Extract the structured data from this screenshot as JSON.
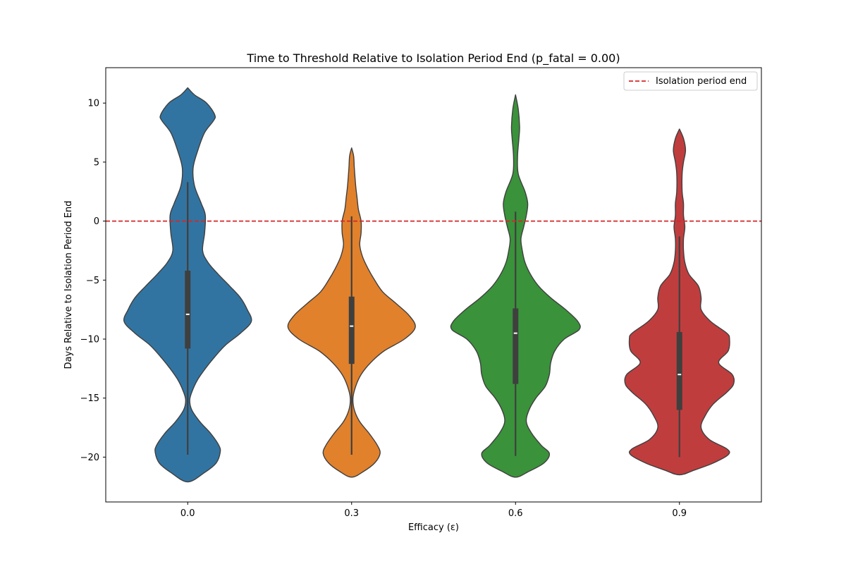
{
  "chart_data": {
    "type": "violin",
    "title": "Time to Threshold Relative to Isolation Period End (p_fatal = 0.00)",
    "xlabel": "Efficacy (ε)",
    "ylabel": "Days Relative to Isolation Period End",
    "ylim": [
      -23.8,
      13.0
    ],
    "yticks": [
      10,
      5,
      0,
      -5,
      -10,
      -15,
      -20
    ],
    "legend": {
      "placement": "top-right",
      "entries": [
        "Isolation period end"
      ]
    },
    "reference_line": {
      "y": 0,
      "label": "Isolation period end",
      "color": "#d62728",
      "style": "dashed"
    },
    "grid": false,
    "categories": [
      "0.0",
      "0.3",
      "0.6",
      "0.9"
    ],
    "series": [
      {
        "category": "0.0",
        "color": "#3274a1",
        "median": -7.9,
        "q1": -10.8,
        "q3": -4.2,
        "whisker_low": -19.8,
        "whisker_high": 3.3,
        "profile": [
          [
            11.3,
            0.0
          ],
          [
            10.7,
            0.1
          ],
          [
            10.0,
            0.28
          ],
          [
            9.0,
            0.4
          ],
          [
            8.5,
            0.38
          ],
          [
            7.5,
            0.25
          ],
          [
            6.0,
            0.15
          ],
          [
            4.5,
            0.08
          ],
          [
            3.0,
            0.1
          ],
          [
            1.5,
            0.2
          ],
          [
            0.5,
            0.26
          ],
          [
            -1.0,
            0.25
          ],
          [
            -2.5,
            0.22
          ],
          [
            -3.5,
            0.3
          ],
          [
            -4.5,
            0.45
          ],
          [
            -5.5,
            0.62
          ],
          [
            -6.5,
            0.78
          ],
          [
            -7.5,
            0.88
          ],
          [
            -8.5,
            0.94
          ],
          [
            -9.5,
            0.78
          ],
          [
            -10.5,
            0.56
          ],
          [
            -11.5,
            0.4
          ],
          [
            -12.5,
            0.26
          ],
          [
            -13.5,
            0.14
          ],
          [
            -14.5,
            0.06
          ],
          [
            -15.2,
            0.03
          ],
          [
            -16.0,
            0.06
          ],
          [
            -17.0,
            0.18
          ],
          [
            -18.0,
            0.34
          ],
          [
            -19.0,
            0.46
          ],
          [
            -19.6,
            0.48
          ],
          [
            -20.5,
            0.42
          ],
          [
            -21.3,
            0.25
          ],
          [
            -22.1,
            0.0
          ]
        ]
      },
      {
        "category": "0.3",
        "color": "#e1812c",
        "median": -8.9,
        "q1": -12.1,
        "q3": -6.4,
        "whisker_low": -19.8,
        "whisker_high": 0.4,
        "profile": [
          [
            6.2,
            0.0
          ],
          [
            5.5,
            0.03
          ],
          [
            4.5,
            0.04
          ],
          [
            3.0,
            0.06
          ],
          [
            2.0,
            0.08
          ],
          [
            1.0,
            0.1
          ],
          [
            0.0,
            0.14
          ],
          [
            -1.0,
            0.14
          ],
          [
            -2.0,
            0.12
          ],
          [
            -3.0,
            0.16
          ],
          [
            -4.0,
            0.24
          ],
          [
            -5.0,
            0.34
          ],
          [
            -6.0,
            0.46
          ],
          [
            -7.0,
            0.66
          ],
          [
            -8.0,
            0.85
          ],
          [
            -9.0,
            0.94
          ],
          [
            -10.0,
            0.78
          ],
          [
            -11.0,
            0.48
          ],
          [
            -12.0,
            0.28
          ],
          [
            -13.0,
            0.14
          ],
          [
            -14.0,
            0.06
          ],
          [
            -15.0,
            0.02
          ],
          [
            -16.0,
            0.04
          ],
          [
            -17.0,
            0.12
          ],
          [
            -18.0,
            0.26
          ],
          [
            -19.0,
            0.38
          ],
          [
            -19.7,
            0.42
          ],
          [
            -20.5,
            0.34
          ],
          [
            -21.2,
            0.18
          ],
          [
            -21.7,
            0.0
          ]
        ]
      },
      {
        "category": "0.6",
        "color": "#3a923a",
        "median": -9.5,
        "q1": -13.8,
        "q3": -7.4,
        "whisker_low": -19.9,
        "whisker_high": 0.8,
        "profile": [
          [
            10.7,
            0.0
          ],
          [
            9.5,
            0.04
          ],
          [
            8.0,
            0.06
          ],
          [
            7.0,
            0.05
          ],
          [
            5.5,
            0.03
          ],
          [
            4.0,
            0.04
          ],
          [
            2.5,
            0.14
          ],
          [
            1.5,
            0.18
          ],
          [
            0.5,
            0.16
          ],
          [
            -0.5,
            0.12
          ],
          [
            -1.5,
            0.08
          ],
          [
            -2.5,
            0.1
          ],
          [
            -3.5,
            0.14
          ],
          [
            -4.5,
            0.22
          ],
          [
            -5.5,
            0.34
          ],
          [
            -6.5,
            0.52
          ],
          [
            -7.5,
            0.74
          ],
          [
            -8.5,
            0.92
          ],
          [
            -9.2,
            0.94
          ],
          [
            -10.0,
            0.72
          ],
          [
            -11.0,
            0.58
          ],
          [
            -12.0,
            0.52
          ],
          [
            -13.0,
            0.5
          ],
          [
            -14.0,
            0.44
          ],
          [
            -15.0,
            0.3
          ],
          [
            -16.0,
            0.2
          ],
          [
            -17.0,
            0.16
          ],
          [
            -18.0,
            0.24
          ],
          [
            -19.0,
            0.38
          ],
          [
            -19.7,
            0.5
          ],
          [
            -20.5,
            0.42
          ],
          [
            -21.2,
            0.2
          ],
          [
            -21.7,
            0.0
          ]
        ]
      },
      {
        "category": "0.9",
        "color": "#c03d3e",
        "median": -13.0,
        "q1": -16.0,
        "q3": -9.4,
        "whisker_low": -20.0,
        "whisker_high": -1.3,
        "profile": [
          [
            7.8,
            0.0
          ],
          [
            7.0,
            0.06
          ],
          [
            6.0,
            0.09
          ],
          [
            5.0,
            0.06
          ],
          [
            4.0,
            0.04
          ],
          [
            2.5,
            0.04
          ],
          [
            1.5,
            0.06
          ],
          [
            0.5,
            0.06
          ],
          [
            -0.5,
            0.08
          ],
          [
            -1.5,
            0.06
          ],
          [
            -2.5,
            0.06
          ],
          [
            -3.5,
            0.08
          ],
          [
            -4.5,
            0.14
          ],
          [
            -5.5,
            0.28
          ],
          [
            -6.5,
            0.32
          ],
          [
            -7.5,
            0.32
          ],
          [
            -8.5,
            0.46
          ],
          [
            -9.5,
            0.7
          ],
          [
            -10.0,
            0.74
          ],
          [
            -11.0,
            0.72
          ],
          [
            -12.0,
            0.58
          ],
          [
            -13.0,
            0.78
          ],
          [
            -13.8,
            0.8
          ],
          [
            -14.5,
            0.7
          ],
          [
            -15.5,
            0.5
          ],
          [
            -16.5,
            0.38
          ],
          [
            -17.5,
            0.32
          ],
          [
            -18.5,
            0.44
          ],
          [
            -19.3,
            0.7
          ],
          [
            -19.8,
            0.72
          ],
          [
            -20.5,
            0.5
          ],
          [
            -21.1,
            0.22
          ],
          [
            -21.5,
            0.0
          ]
        ]
      }
    ]
  }
}
